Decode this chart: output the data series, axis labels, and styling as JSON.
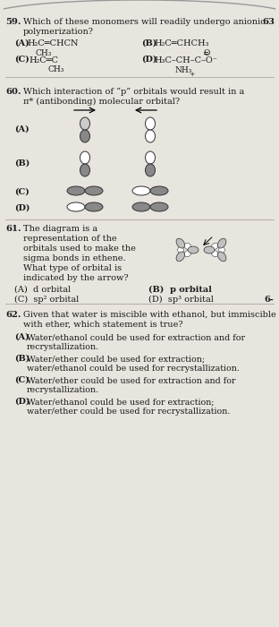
{
  "bg_color": "#e8e4de",
  "text_color": "#1a1a1a",
  "q59_num": "59.",
  "q59_line1": "Which of these monomers will readily undergo anionic",
  "q59_line2": "polymerization?",
  "q59_num2": "63",
  "q60_num": "60.",
  "q60_line1": "Which interaction of “p” orbitals would result in a",
  "q60_line2": "π* (antibonding) molecular orbital?",
  "q61_num": "61.",
  "q61_line1": "The diagram is a",
  "q61_line2": "representation of the",
  "q61_line3": "orbitals used to make the",
  "q61_line4": "sigma bonds in ethene.",
  "q61_line5": "What type of orbital is",
  "q61_line6": "indicated by the arrow?",
  "q61_A": "(A)  d orbital",
  "q61_B": "(B)  p orbital",
  "q61_C": "(C)  sp² orbital",
  "q61_D": "(D)  sp³ orbital",
  "q61_num2": "6-",
  "q62_num": "62.",
  "q62_line1": "Given that water is miscible with ethanol, but immiscible",
  "q62_line2": "with ether, which statement is true?",
  "q62_Alabel": "(A)",
  "q62_Aline1": "Water/ethanol could be used for extraction and for",
  "q62_Aline2": "recrystallization.",
  "q62_Blabel": "(B)",
  "q62_Bline1": "Water/ether could be used for extraction;",
  "q62_Bline2": "water/ethanol could be used for recrystallization.",
  "q62_Clabel": "(C)",
  "q62_Cline1": "Water/ether could be used for extraction and for",
  "q62_Cline2": "recrystallization.",
  "q62_Dlabel": "(D)",
  "q62_Dline1": "Water/ethanol could be used for extraction;",
  "q62_Dline2": "water/ether could be used for recrystallization."
}
